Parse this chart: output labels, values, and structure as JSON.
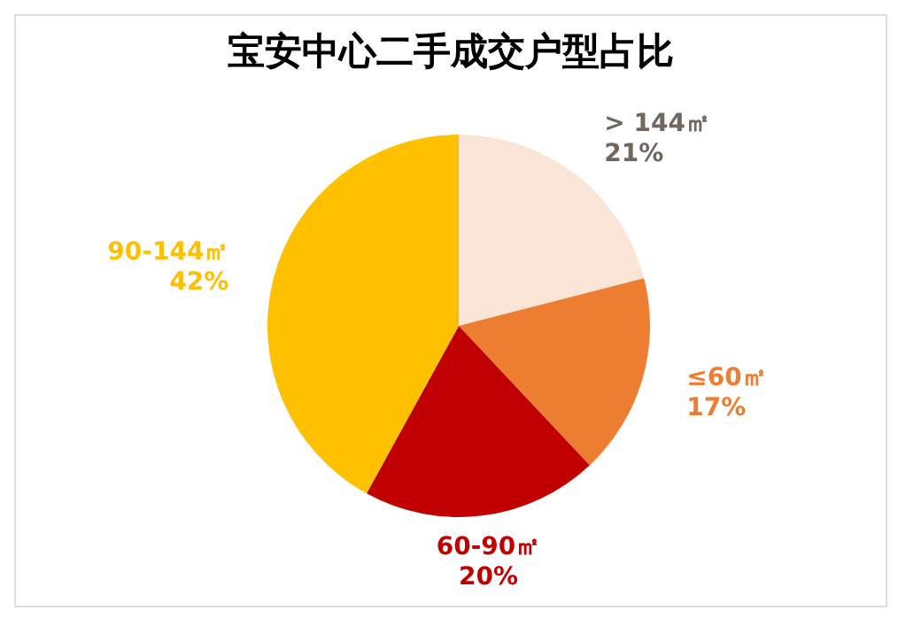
{
  "chart_data": {
    "type": "pie",
    "title": "宝安中心二手成交户型占比",
    "categories": [
      "> 144㎡",
      "≤60㎡",
      "60-90㎡",
      "90-144㎡"
    ],
    "values": [
      21,
      17,
      20,
      42
    ],
    "value_labels": [
      "21%",
      "17%",
      "20%",
      "42%"
    ],
    "colors": [
      "#fbe5d6",
      "#ed7d31",
      "#c00000",
      "#ffc000"
    ],
    "legend": false
  }
}
